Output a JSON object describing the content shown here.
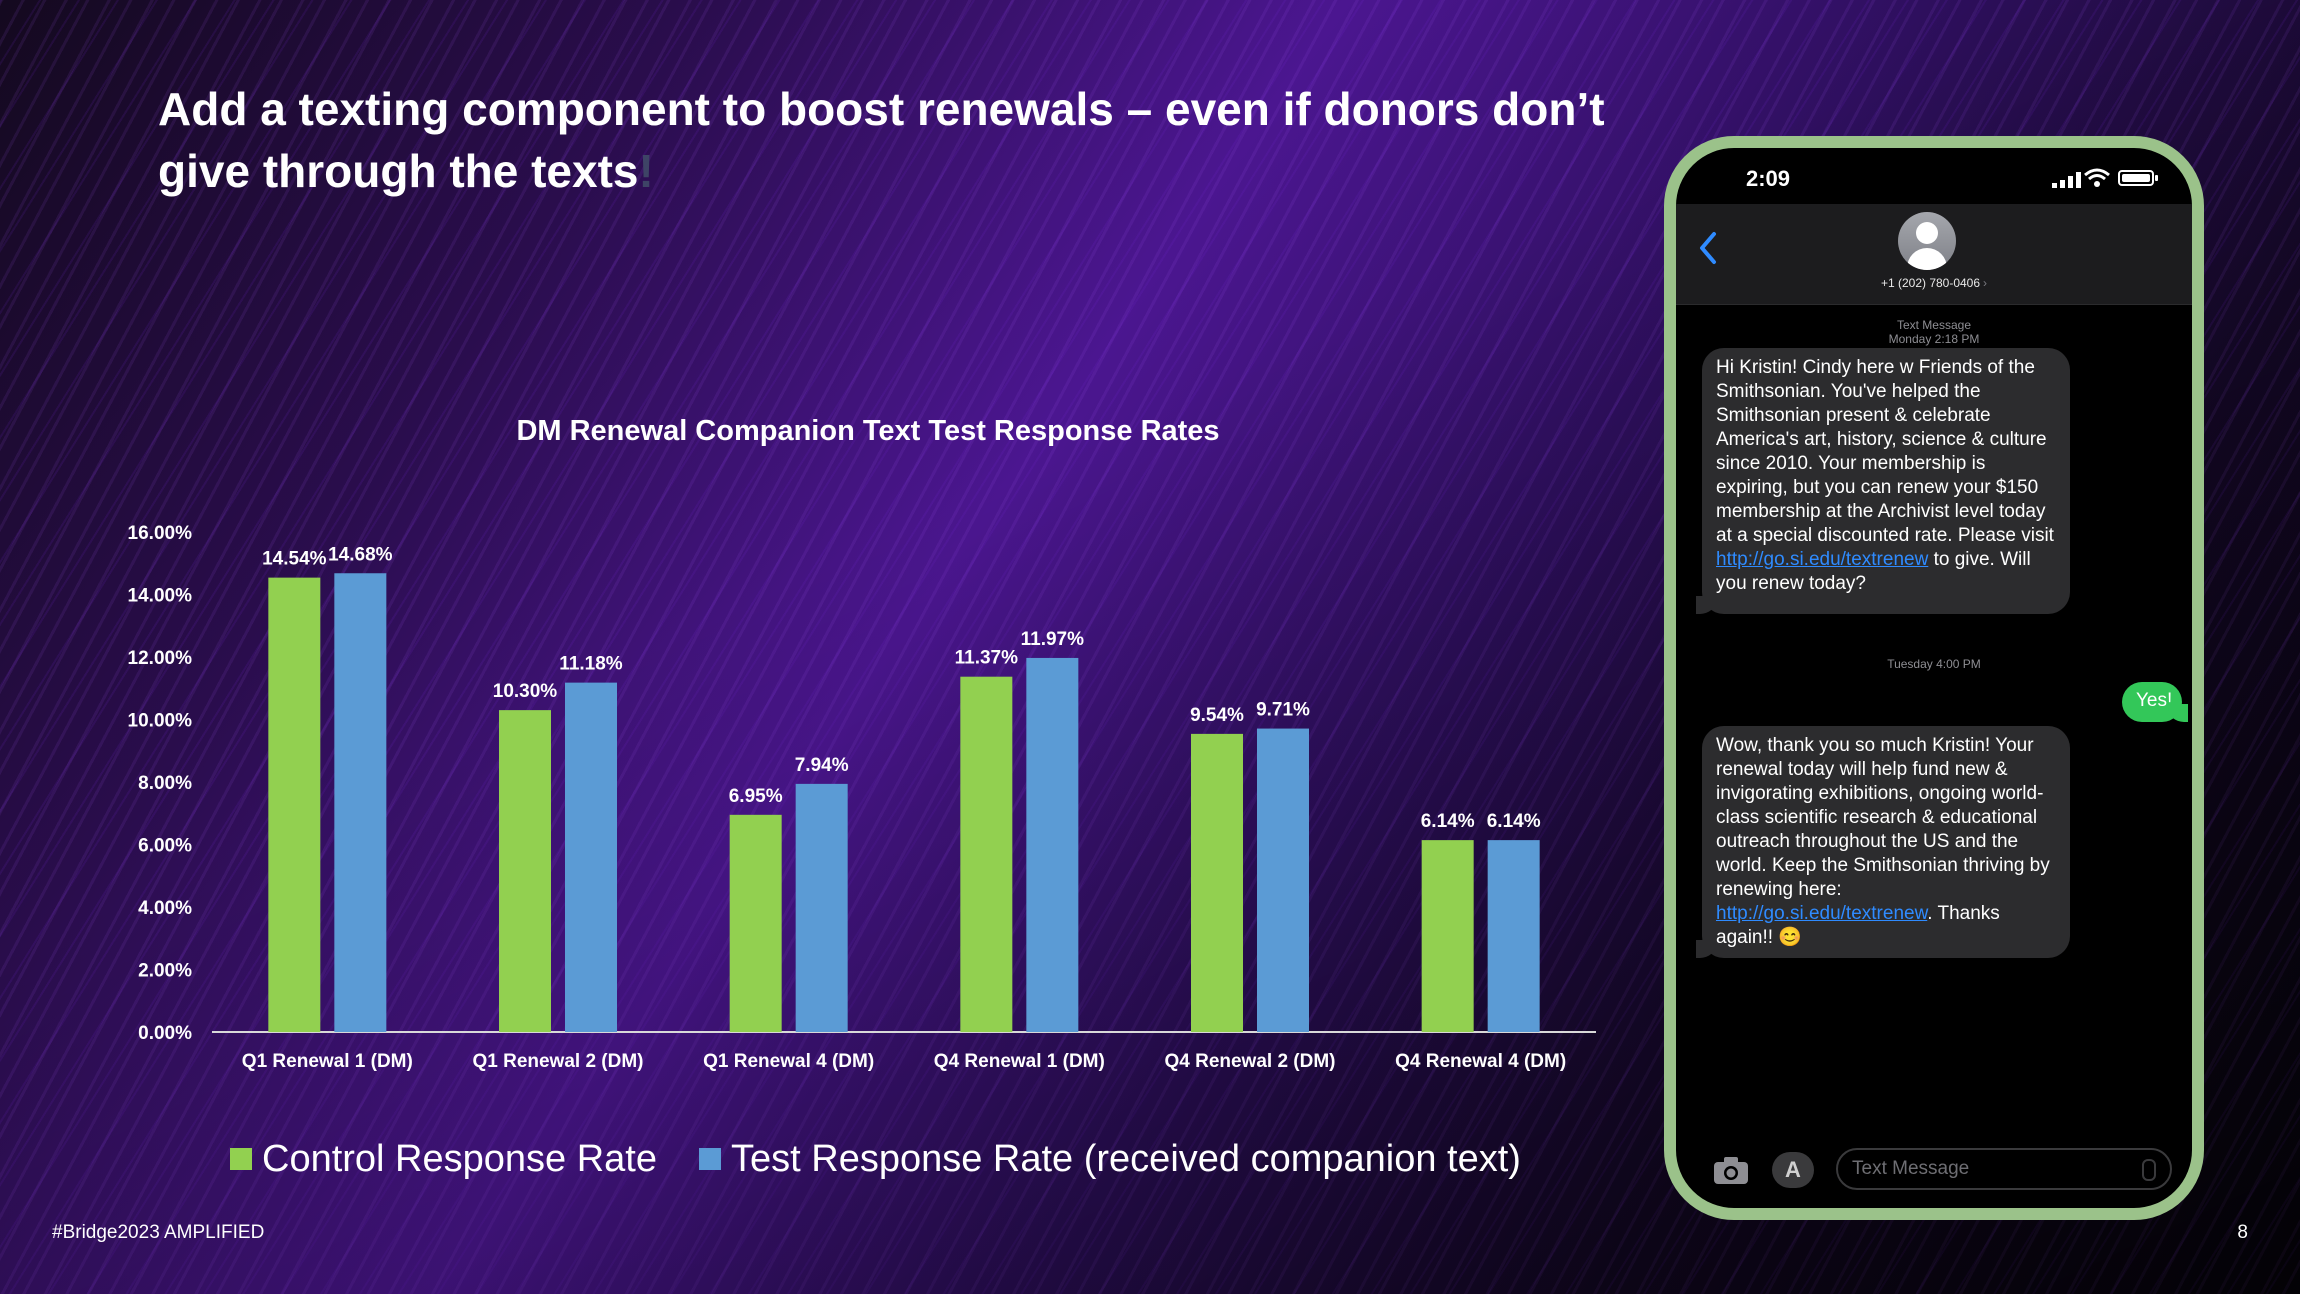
{
  "slide": {
    "title_main": "Add a texting component to boost renewals – even if donors don’t give through the texts",
    "title_excl": "!",
    "footer_left": "#Bridge2023 AMPLIFIED",
    "page_number": "8"
  },
  "chart_data": {
    "type": "bar",
    "title": "DM Renewal Companion Text Test Response Rates",
    "xlabel": "",
    "ylabel": "",
    "ylim": [
      0,
      16
    ],
    "yticks": [
      "0.00%",
      "2.00%",
      "4.00%",
      "6.00%",
      "8.00%",
      "10.00%",
      "12.00%",
      "14.00%",
      "16.00%"
    ],
    "categories": [
      "Q1 Renewal 1 (DM)",
      "Q1 Renewal 2 (DM)",
      "Q1 Renewal 4 (DM)",
      "Q4 Renewal 1 (DM)",
      "Q4 Renewal 2 (DM)",
      "Q4 Renewal 4 (DM)"
    ],
    "series": [
      {
        "name": "Control Response Rate",
        "color": "#92d050",
        "values": [
          14.54,
          10.3,
          6.95,
          11.37,
          9.54,
          6.14
        ],
        "labels": [
          "14.54%",
          "10.30%",
          "6.95%",
          "11.37%",
          "9.54%",
          "6.14%"
        ]
      },
      {
        "name": "Test Response Rate (received companion text)",
        "color": "#5b9bd5",
        "values": [
          14.68,
          11.18,
          7.94,
          11.97,
          9.71,
          6.14
        ],
        "labels": [
          "14.68%",
          "11.18%",
          "7.94%",
          "11.97%",
          "9.71%",
          "6.14%"
        ]
      }
    ],
    "grid": false,
    "legend": "bottom"
  },
  "phone": {
    "time": "2:09",
    "contact": "+1 (202) 780-0406",
    "contact_chevron": "›",
    "meta1_line1": "Text Message",
    "meta1_line2": "Monday 2:18 PM",
    "msg1_text": "Hi Kristin! Cindy here w Friends of the Smithsonian. You've helped the Smithsonian present & celebrate America's art, history, science & culture since 2010. Your membership is expiring, but you can renew your $150 membership at the Archivist level today at a special discounted rate. Please visit ",
    "msg1_link": "http://go.si.edu/textrenew",
    "msg1_tail": " to give. Will you renew today?",
    "meta2": "Tuesday 4:00 PM",
    "reply": "Yes!",
    "msg2_text": "Wow, thank you so much Kristin! Your renewal today will help fund new & invigorating exhibitions, ongoing world-class scientific research & educational outreach throughout the US and the world. Keep the Smithsonian thriving by renewing here: ",
    "msg2_link": "http://go.si.edu/textrenew",
    "msg2_tail": ". Thanks again!! 😊",
    "placeholder": "Text Message",
    "apps_glyph": "A",
    "icons": [
      "back-chevron-icon",
      "contact-avatar-icon",
      "signal-icon",
      "wifi-icon",
      "battery-icon",
      "camera-icon",
      "app-store-icon",
      "microphone-icon"
    ]
  }
}
